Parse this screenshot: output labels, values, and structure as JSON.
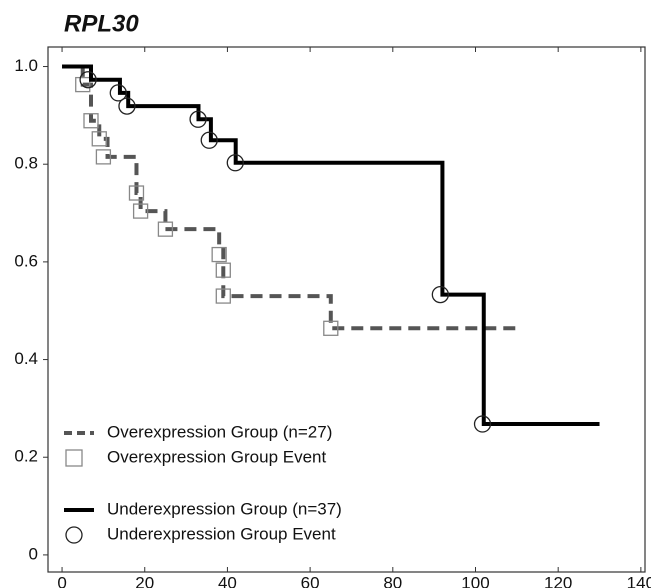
{
  "chart_data": {
    "type": "line",
    "title": "RPL30",
    "xlim": [
      -3.4,
      141
    ],
    "ylim": [
      -0.035,
      1.04
    ],
    "xticks": [
      0,
      20,
      40,
      60,
      80,
      100,
      120,
      140
    ],
    "yticks": [
      {
        "value": 1,
        "label": "1.0"
      },
      0.8,
      0.6,
      0.4,
      0.2,
      0
    ],
    "series": [
      {
        "name": "Overexpression Group (n=27)",
        "color": "#555555",
        "style": "dashed",
        "x": [
          0,
          5,
          7,
          9,
          11,
          18,
          19,
          25,
          38,
          39,
          65,
          110
        ],
        "values": [
          1,
          0.963,
          0.889,
          0.852,
          0.815,
          0.741,
          0.704,
          0.667,
          0.63,
          0.53,
          0.464,
          0.464
        ]
      },
      {
        "name": "Overexpression Group Event",
        "color": "#888888",
        "style": "square",
        "x": [
          5,
          7,
          9,
          10,
          18,
          19,
          25,
          38,
          39,
          39,
          65
        ],
        "values": [
          0.963,
          0.889,
          0.852,
          0.815,
          0.741,
          0.704,
          0.667,
          0.615,
          0.583,
          0.53,
          0.464
        ]
      },
      {
        "name": "Underexpression Group (n=37)",
        "color": "#000000",
        "style": "solid",
        "x": [
          0,
          7,
          14,
          16,
          33,
          36,
          42,
          92,
          102,
          130
        ],
        "values": [
          1,
          0.973,
          0.946,
          0.919,
          0.892,
          0.849,
          0.803,
          0.533,
          0.268,
          0.268
        ]
      },
      {
        "name": "Underexpression Group Event",
        "color": "#222222",
        "style": "circle",
        "x": [
          6.3,
          13.6,
          15.7,
          32.9,
          35.6,
          41.9,
          91.5,
          101.7
        ],
        "values": [
          0.973,
          0.946,
          0.919,
          0.892,
          0.849,
          0.803,
          0.533,
          0.268
        ]
      }
    ]
  }
}
